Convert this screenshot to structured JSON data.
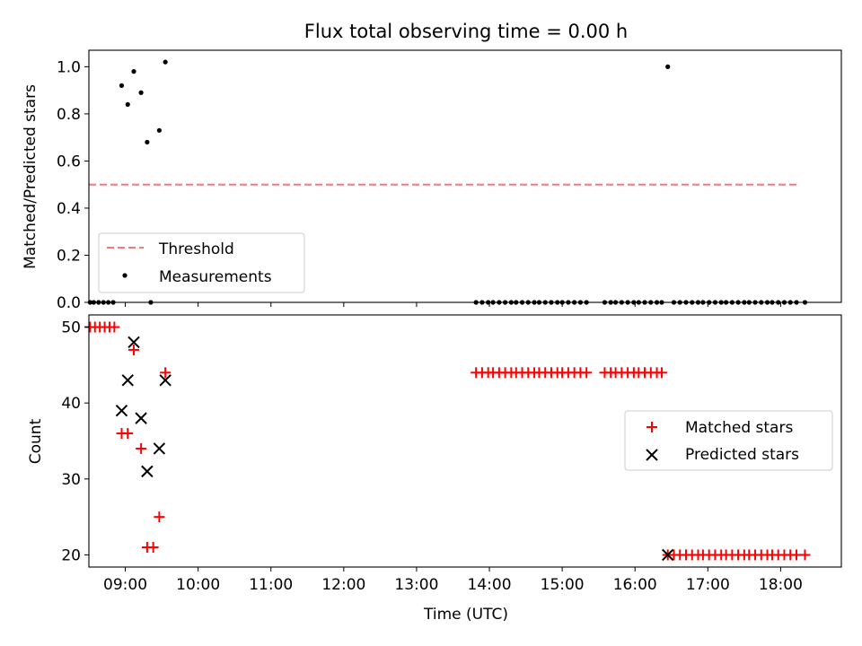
{
  "title": "Flux total observing time = 0.00 h",
  "colors": {
    "threshold": "#f47a7a",
    "measurements": "#000000",
    "matched": "#ff0000",
    "predicted": "#000000"
  },
  "chart_data": [
    {
      "type": "scatter",
      "ylabel": "Matched/Predicted stars",
      "ylim": [
        0,
        1.07
      ],
      "yticks": [
        "0.0",
        "0.2",
        "0.4",
        "0.6",
        "0.8",
        "1.0"
      ],
      "x_time_range": [
        "08:30",
        "18:50"
      ],
      "xticks_shown": false,
      "legend_position": "lower-left",
      "threshold": {
        "name": "Threshold",
        "value": 0.5,
        "x_start": "08:30",
        "x_end": "18:15"
      },
      "measurements": {
        "name": "Measurements",
        "points": [
          [
            "08:31",
            0
          ],
          [
            "08:34",
            0
          ],
          [
            "08:38",
            0
          ],
          [
            "08:42",
            0
          ],
          [
            "08:46",
            0
          ],
          [
            "08:50",
            0
          ],
          [
            "08:57",
            0.92
          ],
          [
            "09:02",
            0.84
          ],
          [
            "09:07",
            0.98
          ],
          [
            "09:13",
            0.89
          ],
          [
            "09:18",
            0.68
          ],
          [
            "09:21",
            0
          ],
          [
            "09:28",
            0.73
          ],
          [
            "09:33",
            1.02
          ],
          [
            "13:49",
            0
          ],
          [
            "13:54",
            0
          ],
          [
            "13:59",
            0
          ],
          [
            "14:03",
            0
          ],
          [
            "14:08",
            0
          ],
          [
            "14:13",
            0
          ],
          [
            "14:18",
            0
          ],
          [
            "14:22",
            0
          ],
          [
            "14:27",
            0
          ],
          [
            "14:32",
            0
          ],
          [
            "14:37",
            0
          ],
          [
            "14:41",
            0
          ],
          [
            "14:46",
            0
          ],
          [
            "14:51",
            0
          ],
          [
            "14:56",
            0
          ],
          [
            "15:00",
            0
          ],
          [
            "15:05",
            0
          ],
          [
            "15:10",
            0
          ],
          [
            "15:15",
            0
          ],
          [
            "15:20",
            0
          ],
          [
            "15:35",
            0
          ],
          [
            "15:40",
            0
          ],
          [
            "15:44",
            0
          ],
          [
            "15:49",
            0
          ],
          [
            "15:54",
            0
          ],
          [
            "15:59",
            0
          ],
          [
            "16:03",
            0
          ],
          [
            "16:08",
            0
          ],
          [
            "16:13",
            0
          ],
          [
            "16:18",
            0
          ],
          [
            "16:22",
            0
          ],
          [
            "16:27",
            1.0
          ],
          [
            "16:32",
            0
          ],
          [
            "16:37",
            0
          ],
          [
            "16:42",
            0
          ],
          [
            "16:47",
            0
          ],
          [
            "16:52",
            0
          ],
          [
            "16:56",
            0
          ],
          [
            "17:01",
            0
          ],
          [
            "17:06",
            0
          ],
          [
            "17:11",
            0
          ],
          [
            "17:15",
            0
          ],
          [
            "17:20",
            0
          ],
          [
            "17:25",
            0
          ],
          [
            "17:30",
            0
          ],
          [
            "17:34",
            0
          ],
          [
            "17:39",
            0
          ],
          [
            "17:44",
            0
          ],
          [
            "17:49",
            0
          ],
          [
            "17:53",
            0
          ],
          [
            "17:58",
            0
          ],
          [
            "18:03",
            0
          ],
          [
            "18:08",
            0
          ],
          [
            "18:13",
            0
          ],
          [
            "18:20",
            0
          ]
        ]
      }
    },
    {
      "type": "scatter",
      "xlabel": "Time (UTC)",
      "ylabel": "Count",
      "ylim": [
        18.4,
        51.6
      ],
      "yticks": [
        "20",
        "30",
        "40",
        "50"
      ],
      "x_time_range": [
        "08:30",
        "18:50"
      ],
      "xticks": [
        "09:00",
        "10:00",
        "11:00",
        "12:00",
        "13:00",
        "14:00",
        "15:00",
        "16:00",
        "17:00",
        "18:00"
      ],
      "legend_position": "center-right",
      "series": [
        {
          "name": "Matched stars",
          "points": [
            [
              "08:31",
              50
            ],
            [
              "08:35",
              50
            ],
            [
              "08:39",
              50
            ],
            [
              "08:43",
              50
            ],
            [
              "08:47",
              50
            ],
            [
              "08:51",
              50
            ],
            [
              "08:57",
              36
            ],
            [
              "09:02",
              36
            ],
            [
              "09:07",
              47
            ],
            [
              "09:13",
              34
            ],
            [
              "09:18",
              21
            ],
            [
              "09:23",
              21
            ],
            [
              "09:28",
              25
            ],
            [
              "09:33",
              44
            ],
            [
              "13:49",
              44
            ],
            [
              "13:54",
              44
            ],
            [
              "13:59",
              44
            ],
            [
              "14:03",
              44
            ],
            [
              "14:08",
              44
            ],
            [
              "14:13",
              44
            ],
            [
              "14:18",
              44
            ],
            [
              "14:22",
              44
            ],
            [
              "14:27",
              44
            ],
            [
              "14:32",
              44
            ],
            [
              "14:37",
              44
            ],
            [
              "14:41",
              44
            ],
            [
              "14:46",
              44
            ],
            [
              "14:51",
              44
            ],
            [
              "14:56",
              44
            ],
            [
              "15:00",
              44
            ],
            [
              "15:05",
              44
            ],
            [
              "15:10",
              44
            ],
            [
              "15:15",
              44
            ],
            [
              "15:20",
              44
            ],
            [
              "15:35",
              44
            ],
            [
              "15:40",
              44
            ],
            [
              "15:44",
              44
            ],
            [
              "15:49",
              44
            ],
            [
              "15:54",
              44
            ],
            [
              "15:59",
              44
            ],
            [
              "16:03",
              44
            ],
            [
              "16:08",
              44
            ],
            [
              "16:13",
              44
            ],
            [
              "16:18",
              44
            ],
            [
              "16:22",
              44
            ],
            [
              "16:27",
              20
            ],
            [
              "16:32",
              20
            ],
            [
              "16:37",
              20
            ],
            [
              "16:42",
              20
            ],
            [
              "16:47",
              20
            ],
            [
              "16:52",
              20
            ],
            [
              "16:56",
              20
            ],
            [
              "17:01",
              20
            ],
            [
              "17:06",
              20
            ],
            [
              "17:11",
              20
            ],
            [
              "17:15",
              20
            ],
            [
              "17:20",
              20
            ],
            [
              "17:25",
              20
            ],
            [
              "17:30",
              20
            ],
            [
              "17:34",
              20
            ],
            [
              "17:39",
              20
            ],
            [
              "17:44",
              20
            ],
            [
              "17:49",
              20
            ],
            [
              "17:53",
              20
            ],
            [
              "17:58",
              20
            ],
            [
              "18:03",
              20
            ],
            [
              "18:08",
              20
            ],
            [
              "18:13",
              20
            ],
            [
              "18:20",
              20
            ]
          ]
        },
        {
          "name": "Predicted stars",
          "points": [
            [
              "08:57",
              39
            ],
            [
              "09:02",
              43
            ],
            [
              "09:07",
              48
            ],
            [
              "09:13",
              38
            ],
            [
              "09:18",
              31
            ],
            [
              "09:28",
              34
            ],
            [
              "09:33",
              43
            ],
            [
              "16:27",
              20
            ]
          ]
        }
      ]
    }
  ]
}
